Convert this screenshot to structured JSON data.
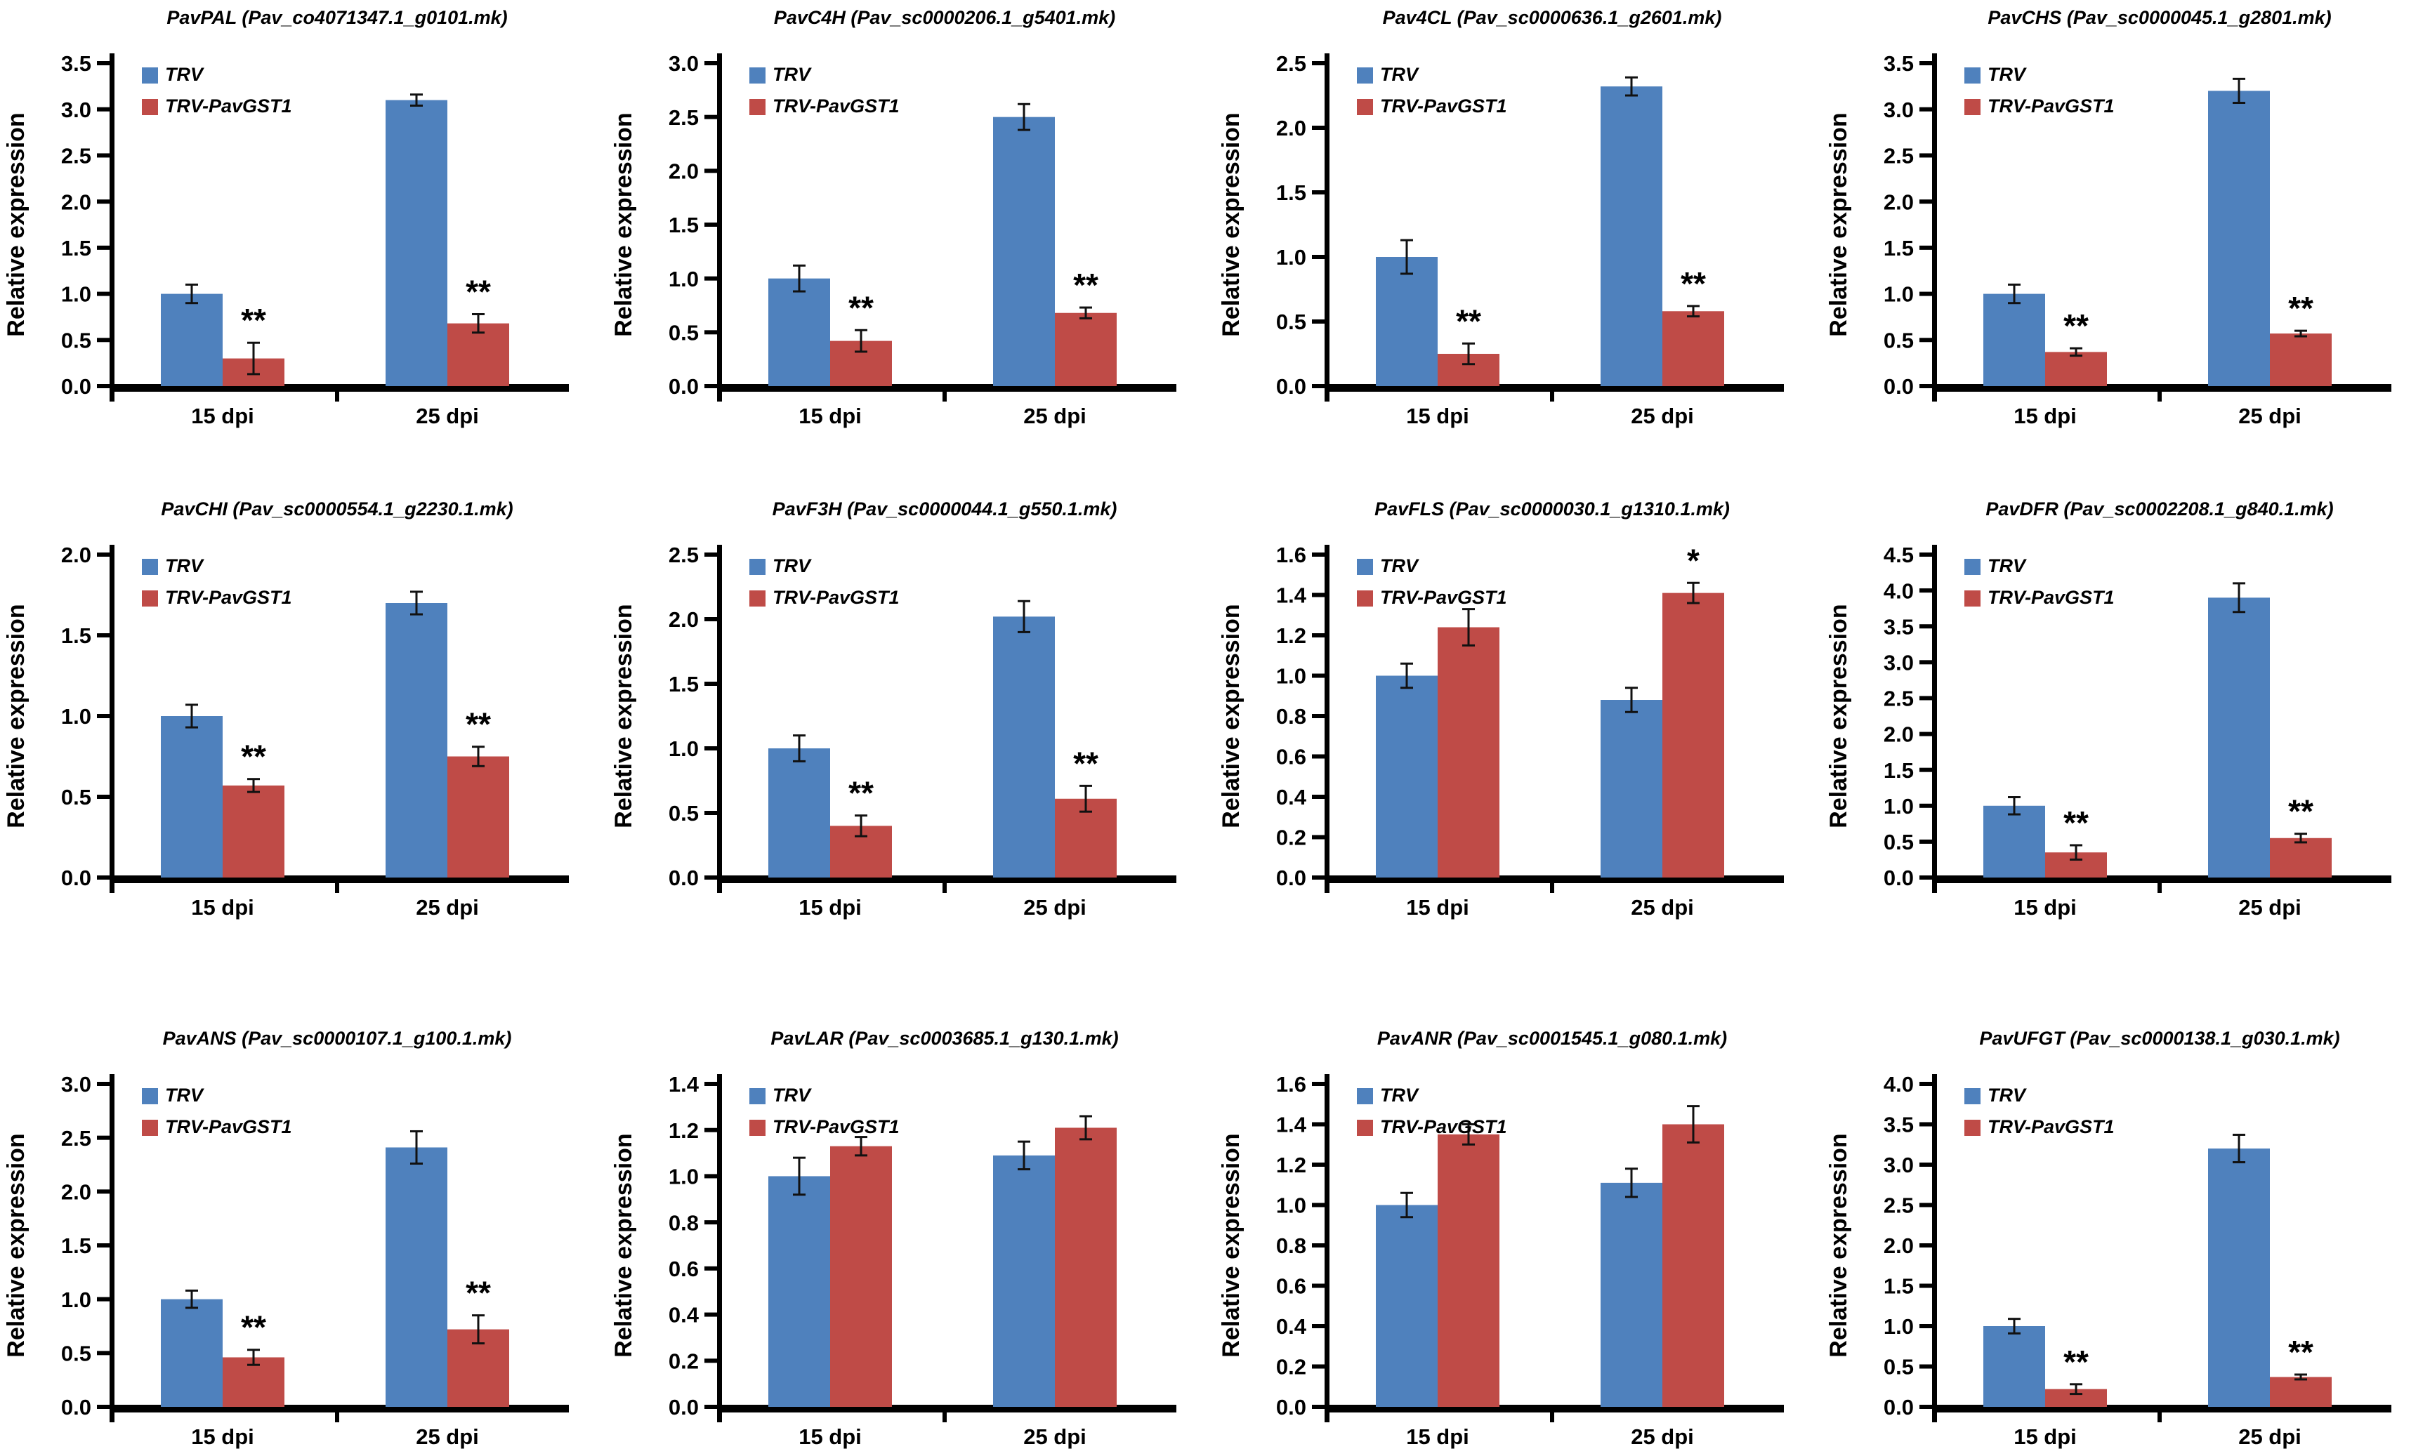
{
  "figure": {
    "ylabel": "Relative  expression",
    "categories": [
      "15 dpi",
      "25 dpi"
    ],
    "legend": [
      {
        "name": "TRV",
        "color": "#4F81BD"
      },
      {
        "name": "TRV-PavGST1",
        "color": "#BF4B47"
      }
    ],
    "axis_color": "#000000",
    "background": "#ffffff",
    "significance_marks": {
      "single": "*",
      "double": "**"
    }
  },
  "chart_data": [
    {
      "type": "bar",
      "title": "PavPAL (Pav_co4071347.1_g0101.mk)",
      "xlabel": "",
      "ylabel": "Relative  expression",
      "categories": [
        "15 dpi",
        "25 dpi"
      ],
      "ylim": [
        0,
        3.5
      ],
      "yticks": [
        0.0,
        0.5,
        1.0,
        1.5,
        2.0,
        2.5,
        3.0,
        3.5
      ],
      "grid": false,
      "legend_position": "top-left",
      "series": [
        {
          "name": "TRV",
          "values": [
            1.0,
            3.1
          ],
          "errors": [
            0.1,
            0.06
          ]
        },
        {
          "name": "TRV-PavGST1",
          "values": [
            0.3,
            0.68
          ],
          "errors": [
            0.17,
            0.1
          ],
          "significance": [
            "**",
            "**"
          ]
        }
      ]
    },
    {
      "type": "bar",
      "title": "PavC4H (Pav_sc0000206.1_g5401.mk)",
      "xlabel": "",
      "ylabel": "Relative  expression",
      "categories": [
        "15 dpi",
        "25 dpi"
      ],
      "ylim": [
        0,
        3.0
      ],
      "yticks": [
        0.0,
        0.5,
        1.0,
        1.5,
        2.0,
        2.5,
        3.0
      ],
      "grid": false,
      "legend_position": "top-left",
      "series": [
        {
          "name": "TRV",
          "values": [
            1.0,
            2.5
          ],
          "errors": [
            0.12,
            0.12
          ]
        },
        {
          "name": "TRV-PavGST1",
          "values": [
            0.42,
            0.68
          ],
          "errors": [
            0.1,
            0.05
          ],
          "significance": [
            "**",
            "**"
          ]
        }
      ]
    },
    {
      "type": "bar",
      "title": "Pav4CL (Pav_sc0000636.1_g2601.mk)",
      "xlabel": "",
      "ylabel": "Relative  expression",
      "categories": [
        "15 dpi",
        "25 dpi"
      ],
      "ylim": [
        0,
        2.5
      ],
      "yticks": [
        0.0,
        0.5,
        1.0,
        1.5,
        2.0,
        2.5
      ],
      "grid": false,
      "legend_position": "top-left",
      "series": [
        {
          "name": "TRV",
          "values": [
            1.0,
            2.32
          ],
          "errors": [
            0.13,
            0.07
          ]
        },
        {
          "name": "TRV-PavGST1",
          "values": [
            0.25,
            0.58
          ],
          "errors": [
            0.08,
            0.04
          ],
          "significance": [
            "**",
            "**"
          ]
        }
      ]
    },
    {
      "type": "bar",
      "title": "PavCHS (Pav_sc0000045.1_g2801.mk)",
      "xlabel": "",
      "ylabel": "Relative  expression",
      "categories": [
        "15 dpi",
        "25 dpi"
      ],
      "ylim": [
        0,
        3.5
      ],
      "yticks": [
        0.0,
        0.5,
        1.0,
        1.5,
        2.0,
        2.5,
        3.0,
        3.5
      ],
      "grid": false,
      "legend_position": "top-left",
      "series": [
        {
          "name": "TRV",
          "values": [
            1.0,
            3.2
          ],
          "errors": [
            0.1,
            0.13
          ]
        },
        {
          "name": "TRV-PavGST1",
          "values": [
            0.37,
            0.57
          ],
          "errors": [
            0.04,
            0.03
          ],
          "significance": [
            "**",
            "**"
          ]
        }
      ]
    },
    {
      "type": "bar",
      "title": "PavCHI (Pav_sc0000554.1_g2230.1.mk)",
      "xlabel": "",
      "ylabel": "Relative  expression",
      "categories": [
        "15 dpi",
        "25 dpi"
      ],
      "ylim": [
        0,
        2.0
      ],
      "yticks": [
        0.0,
        0.5,
        1.0,
        1.5,
        2.0
      ],
      "grid": false,
      "legend_position": "top-left",
      "series": [
        {
          "name": "TRV",
          "values": [
            1.0,
            1.7
          ],
          "errors": [
            0.07,
            0.07
          ]
        },
        {
          "name": "TRV-PavGST1",
          "values": [
            0.57,
            0.75
          ],
          "errors": [
            0.04,
            0.06
          ],
          "significance": [
            "**",
            "**"
          ]
        }
      ]
    },
    {
      "type": "bar",
      "title": "PavF3H (Pav_sc0000044.1_g550.1.mk)",
      "xlabel": "",
      "ylabel": "Relative  expression",
      "categories": [
        "15 dpi",
        "25 dpi"
      ],
      "ylim": [
        0,
        2.5
      ],
      "yticks": [
        0.0,
        0.5,
        1.0,
        1.5,
        2.0,
        2.5
      ],
      "grid": false,
      "legend_position": "top-left",
      "series": [
        {
          "name": "TRV",
          "values": [
            1.0,
            2.02
          ],
          "errors": [
            0.1,
            0.12
          ]
        },
        {
          "name": "TRV-PavGST1",
          "values": [
            0.4,
            0.61
          ],
          "errors": [
            0.08,
            0.1
          ],
          "significance": [
            "**",
            "**"
          ]
        }
      ]
    },
    {
      "type": "bar",
      "title": "PavFLS (Pav_sc0000030.1_g1310.1.mk)",
      "xlabel": "",
      "ylabel": "Relative  expression",
      "categories": [
        "15 dpi",
        "25 dpi"
      ],
      "ylim": [
        0,
        1.6
      ],
      "yticks": [
        0.0,
        0.2,
        0.4,
        0.6,
        0.8,
        1.0,
        1.2,
        1.4,
        1.6
      ],
      "grid": false,
      "legend_position": "top-left",
      "series": [
        {
          "name": "TRV",
          "values": [
            1.0,
            0.88
          ],
          "errors": [
            0.06,
            0.06
          ]
        },
        {
          "name": "TRV-PavGST1",
          "values": [
            1.24,
            1.41
          ],
          "errors": [
            0.09,
            0.05
          ],
          "significance": [
            "",
            "*"
          ]
        }
      ]
    },
    {
      "type": "bar",
      "title": "PavDFR (Pav_sc0002208.1_g840.1.mk)",
      "xlabel": "",
      "ylabel": "Relative  expression",
      "categories": [
        "15 dpi",
        "25 dpi"
      ],
      "ylim": [
        0,
        4.5
      ],
      "yticks": [
        0.0,
        0.5,
        1.0,
        1.5,
        2.0,
        2.5,
        3.0,
        3.5,
        4.0,
        4.5
      ],
      "grid": false,
      "legend_position": "top-left",
      "series": [
        {
          "name": "TRV",
          "values": [
            1.0,
            3.9
          ],
          "errors": [
            0.12,
            0.2
          ]
        },
        {
          "name": "TRV-PavGST1",
          "values": [
            0.35,
            0.55
          ],
          "errors": [
            0.1,
            0.06
          ],
          "significance": [
            "**",
            "**"
          ]
        }
      ]
    },
    {
      "type": "bar",
      "title": "PavANS (Pav_sc0000107.1_g100.1.mk)",
      "xlabel": "",
      "ylabel": "Relative  expression",
      "categories": [
        "15 dpi",
        "25 dpi"
      ],
      "ylim": [
        0,
        3.0
      ],
      "yticks": [
        0.0,
        0.5,
        1.0,
        1.5,
        2.0,
        2.5,
        3.0
      ],
      "grid": false,
      "legend_position": "top-left",
      "series": [
        {
          "name": "TRV",
          "values": [
            1.0,
            2.41
          ],
          "errors": [
            0.08,
            0.15
          ]
        },
        {
          "name": "TRV-PavGST1",
          "values": [
            0.46,
            0.72
          ],
          "errors": [
            0.07,
            0.13
          ],
          "significance": [
            "**",
            "**"
          ]
        }
      ]
    },
    {
      "type": "bar",
      "title": "PavLAR (Pav_sc0003685.1_g130.1.mk)",
      "xlabel": "",
      "ylabel": "Relative  expression",
      "categories": [
        "15 dpi",
        "25 dpi"
      ],
      "ylim": [
        0,
        1.4
      ],
      "yticks": [
        0.0,
        0.2,
        0.4,
        0.6,
        0.8,
        1.0,
        1.2,
        1.4
      ],
      "grid": false,
      "legend_position": "top-left",
      "series": [
        {
          "name": "TRV",
          "values": [
            1.0,
            1.09
          ],
          "errors": [
            0.08,
            0.06
          ]
        },
        {
          "name": "TRV-PavGST1",
          "values": [
            1.13,
            1.21
          ],
          "errors": [
            0.04,
            0.05
          ],
          "significance": [
            "",
            ""
          ]
        }
      ]
    },
    {
      "type": "bar",
      "title": "PavANR (Pav_sc0001545.1_g080.1.mk)",
      "xlabel": "",
      "ylabel": "Relative  expression",
      "categories": [
        "15 dpi",
        "25 dpi"
      ],
      "ylim": [
        0,
        1.6
      ],
      "yticks": [
        0.0,
        0.2,
        0.4,
        0.6,
        0.8,
        1.0,
        1.2,
        1.4,
        1.6
      ],
      "grid": false,
      "legend_position": "top-left",
      "series": [
        {
          "name": "TRV",
          "values": [
            1.0,
            1.11
          ],
          "errors": [
            0.06,
            0.07
          ]
        },
        {
          "name": "TRV-PavGST1",
          "values": [
            1.35,
            1.4
          ],
          "errors": [
            0.05,
            0.09
          ],
          "significance": [
            "",
            ""
          ]
        }
      ]
    },
    {
      "type": "bar",
      "title": "PavUFGT (Pav_sc0000138.1_g030.1.mk)",
      "xlabel": "",
      "ylabel": "Relative  expression",
      "categories": [
        "15 dpi",
        "25 dpi"
      ],
      "ylim": [
        0,
        4.0
      ],
      "yticks": [
        0.0,
        0.5,
        1.0,
        1.5,
        2.0,
        2.5,
        3.0,
        3.5,
        4.0
      ],
      "grid": false,
      "legend_position": "top-left",
      "series": [
        {
          "name": "TRV",
          "values": [
            1.0,
            3.2
          ],
          "errors": [
            0.09,
            0.17
          ]
        },
        {
          "name": "TRV-PavGST1",
          "values": [
            0.22,
            0.37
          ],
          "errors": [
            0.06,
            0.03
          ],
          "significance": [
            "**",
            "**"
          ]
        }
      ]
    }
  ]
}
